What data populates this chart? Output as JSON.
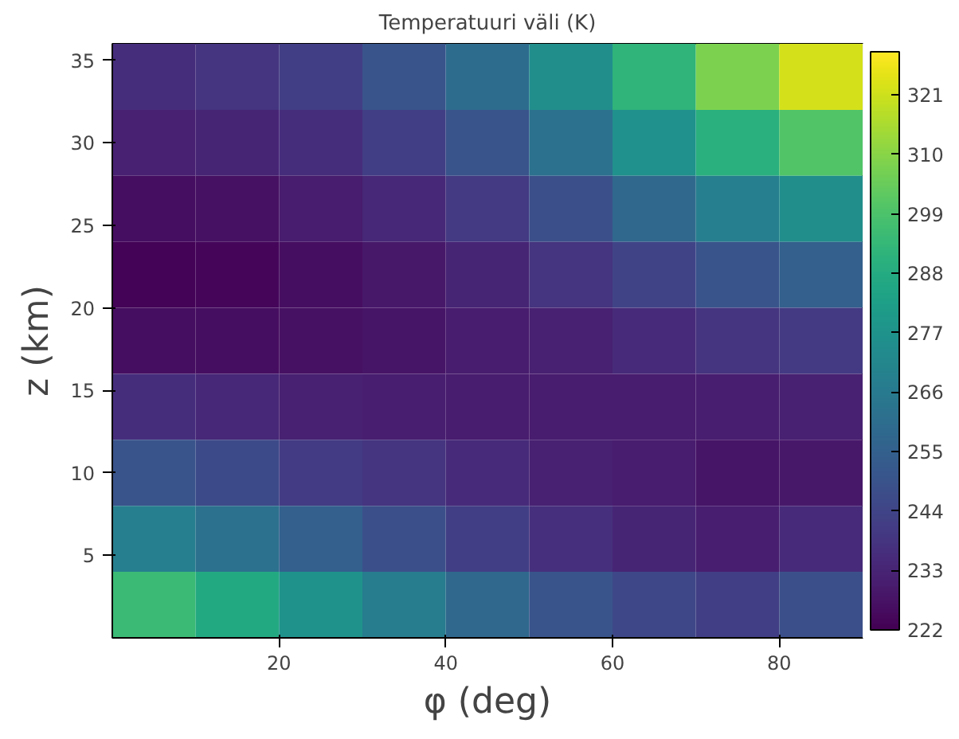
{
  "chart_data": {
    "type": "heatmap",
    "title": "Temperatuuri väli (K)",
    "xlabel": "φ (deg)",
    "ylabel": "z (km)",
    "x": [
      5,
      15,
      25,
      35,
      45,
      55,
      65,
      75,
      85
    ],
    "y": [
      34,
      30,
      26,
      22,
      18,
      14,
      10,
      6,
      2
    ],
    "xlim": [
      0,
      90
    ],
    "ylim": [
      0,
      36
    ],
    "xticks": [
      20,
      40,
      60,
      80
    ],
    "yticks": [
      5,
      10,
      15,
      20,
      25,
      30,
      35
    ],
    "clim": [
      222,
      329
    ],
    "cticks": [
      222,
      233,
      244,
      255,
      266,
      277,
      288,
      299,
      310,
      321
    ],
    "cells": [
      [
        236,
        238,
        242,
        250,
        260,
        275,
        292,
        308,
        322
      ],
      [
        232,
        233,
        236,
        242,
        250,
        262,
        276,
        290,
        300
      ],
      [
        226,
        227,
        230,
        234,
        240,
        248,
        258,
        268,
        275
      ],
      [
        223,
        224,
        226,
        229,
        233,
        238,
        244,
        250,
        255
      ],
      [
        226,
        226,
        227,
        228,
        230,
        232,
        235,
        238,
        240
      ],
      [
        236,
        234,
        232,
        231,
        230,
        230,
        230,
        231,
        232
      ],
      [
        250,
        246,
        241,
        238,
        235,
        232,
        230,
        228,
        229
      ],
      [
        268,
        262,
        255,
        248,
        242,
        237,
        233,
        231,
        235
      ],
      [
        295,
        287,
        277,
        267,
        258,
        250,
        245,
        242,
        248
      ]
    ]
  }
}
